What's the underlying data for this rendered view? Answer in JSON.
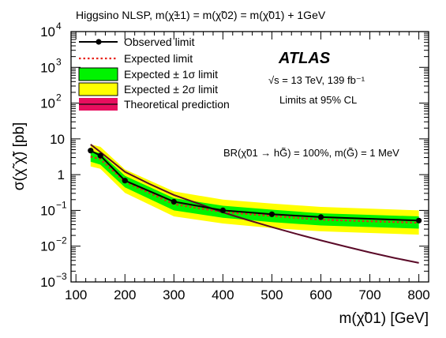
{
  "chart_data": {
    "type": "line",
    "top_label": "Higgsino NLSP, m(χ̃±1) = m(χ̃02) = m(χ̃01) + 1GeV",
    "atlas_label": "ATLAS",
    "energy_label": "√s = 13 TeV, 139 fb⁻¹",
    "cl_label": "Limits at 95% CL",
    "br_label": "BR(χ̃01 → hG̃) = 100%, m(G̃) = 1 MeV",
    "xlabel": "m(χ̃01) [GeV]",
    "ylabel": "σ(χ̃ χ̃) [pb]",
    "y_scale": "log",
    "xlim": [
      90,
      820
    ],
    "ylim": [
      0.001,
      10000
    ],
    "x_ticks": [
      100,
      200,
      300,
      400,
      500,
      600,
      700,
      800
    ],
    "x_tick_labels": [
      "100",
      "200",
      "300",
      "400",
      "500",
      "600",
      "700",
      "800"
    ],
    "y_ticks": [
      {
        "base": "10",
        "exp": "−3",
        "value": 0.001
      },
      {
        "base": "10",
        "exp": "−2",
        "value": 0.01
      },
      {
        "base": "10",
        "exp": "−1",
        "value": 0.1
      },
      {
        "base": "1",
        "exp": "",
        "value": 1
      },
      {
        "base": "10",
        "exp": "",
        "value": 10
      },
      {
        "base": "10",
        "exp": "2",
        "value": 100
      },
      {
        "base": "10",
        "exp": "3",
        "value": 1000
      },
      {
        "base": "10",
        "exp": "4",
        "value": 10000
      }
    ],
    "legend": {
      "placement": "top-left",
      "entries": [
        {
          "label": "Observed limit",
          "key": "observed"
        },
        {
          "label": "Expected limit",
          "key": "expected"
        },
        {
          "label": "Expected ± 1σ limit",
          "key": "band1"
        },
        {
          "label": "Expected ± 2σ limit",
          "key": "band2"
        },
        {
          "label": "Theoretical prediction",
          "key": "theory"
        }
      ]
    },
    "mass_points": [
      130,
      150,
      200,
      300,
      400,
      500,
      600,
      800
    ],
    "series": [
      {
        "name": "Observed limit",
        "key": "observed",
        "x": [
          130,
          150,
          200,
          300,
          400,
          500,
          600,
          800
        ],
        "y": [
          4.7,
          3.4,
          0.68,
          0.175,
          0.1,
          0.078,
          0.065,
          0.052
        ]
      },
      {
        "name": "Expected limit",
        "key": "expected",
        "x": [
          130,
          150,
          200,
          300,
          400,
          500,
          600,
          800
        ],
        "y": [
          3.2,
          2.7,
          0.63,
          0.15,
          0.09,
          0.07,
          0.055,
          0.045
        ]
      },
      {
        "name": "Expected ± 1σ limit",
        "key": "band1",
        "x": [
          130,
          150,
          200,
          300,
          400,
          500,
          600,
          800
        ],
        "y_low": [
          2.3,
          1.9,
          0.44,
          0.1,
          0.062,
          0.047,
          0.038,
          0.031
        ],
        "y_high": [
          4.6,
          4.0,
          0.93,
          0.22,
          0.135,
          0.105,
          0.083,
          0.068
        ]
      },
      {
        "name": "Expected ± 2σ limit",
        "key": "band2",
        "x": [
          130,
          150,
          200,
          300,
          400,
          500,
          600,
          800
        ],
        "y_low": [
          1.7,
          1.45,
          0.31,
          0.068,
          0.043,
          0.032,
          0.026,
          0.021
        ],
        "y_high": [
          7.0,
          6.0,
          1.4,
          0.34,
          0.2,
          0.155,
          0.125,
          0.1
        ]
      },
      {
        "name": "Theoretical prediction",
        "key": "theory",
        "x": [
          130,
          150,
          200,
          250,
          300,
          350,
          400,
          450,
          500,
          550,
          600,
          650,
          700,
          750,
          800
        ],
        "y": [
          7.0,
          4.3,
          1.2,
          0.55,
          0.27,
          0.155,
          0.088,
          0.054,
          0.034,
          0.022,
          0.0145,
          0.0098,
          0.0067,
          0.0047,
          0.0034
        ]
      }
    ],
    "colors": {
      "observed": "#000000",
      "expected": "#e8241c",
      "band1": "#00f300",
      "band2": "#ffff00",
      "theory": "#5a0a28",
      "theory_legend": "#e80e5e"
    },
    "grid": false
  }
}
